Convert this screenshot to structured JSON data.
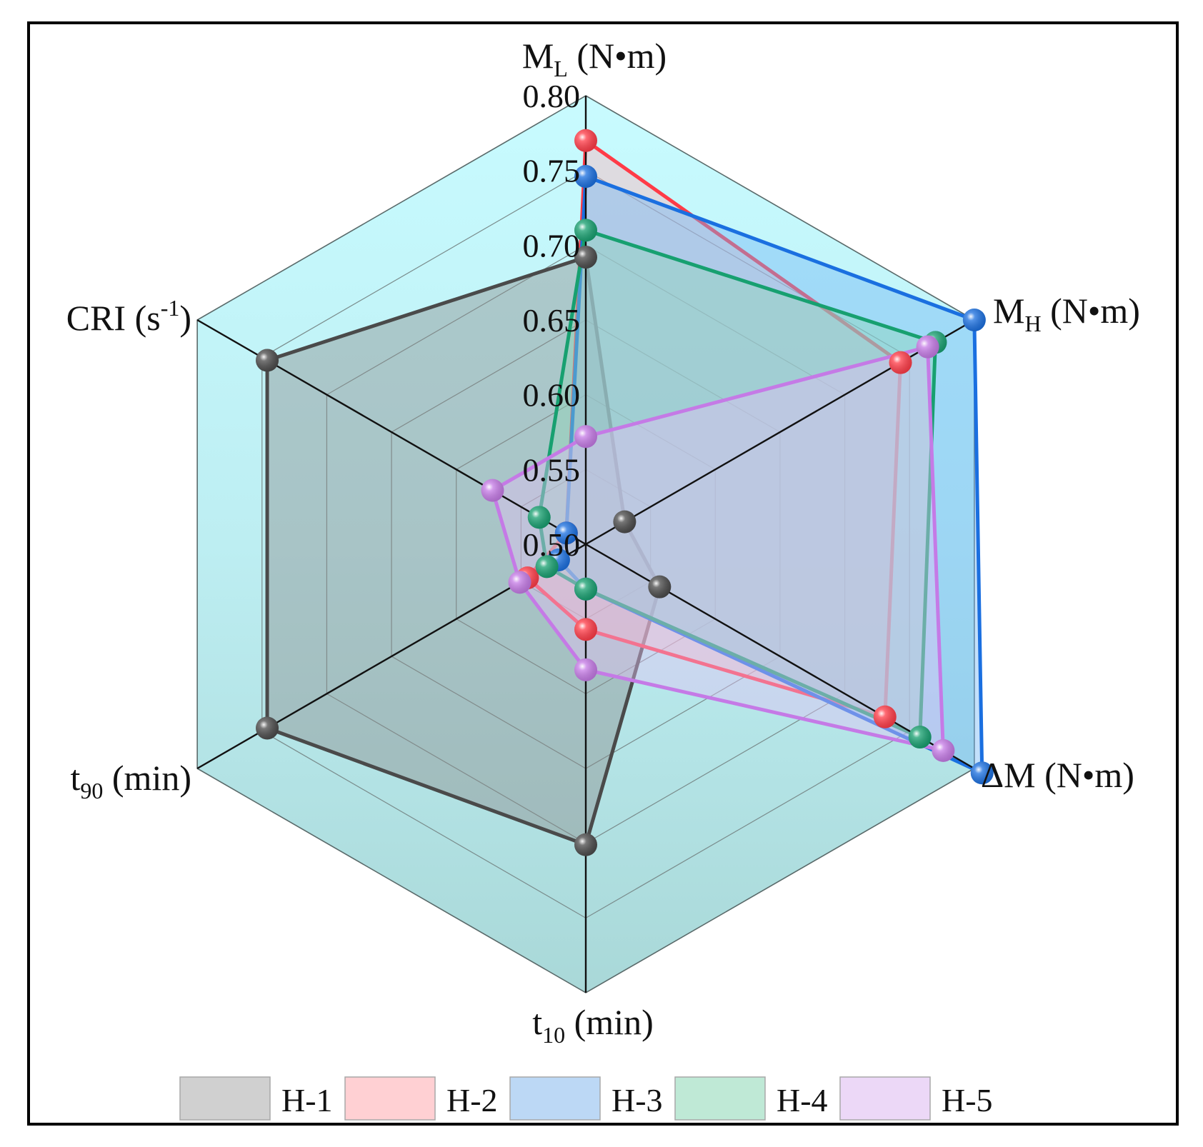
{
  "chart_data": {
    "type": "radar",
    "title": "",
    "axes": [
      {
        "label": "M",
        "sub": "L",
        "unit": " (N•m)"
      },
      {
        "label": "M",
        "sub": "H",
        "unit": " (N•m)"
      },
      {
        "label": "ΔM (N•m)",
        "sub": "",
        "unit": ""
      },
      {
        "label": "t",
        "sub": "10",
        "unit": " (min)"
      },
      {
        "label": "t",
        "sub": "90",
        "unit": " (min)"
      },
      {
        "label": "CRI (s",
        "sup": "-1",
        "unit": ")"
      }
    ],
    "radial_ticks": [
      "0.50",
      "0.55",
      "0.60",
      "0.65",
      "0.70",
      "0.75",
      "0.80"
    ],
    "radial_range": [
      0.5,
      0.8
    ],
    "grid_rings": 6,
    "legend_position": "bottom",
    "series": [
      {
        "name": "H-1",
        "color": "#4a4a4a",
        "fill": "#8a8a8a",
        "legend_fill": "#d0d0d0",
        "values_normalized": [
          0.64,
          0.1,
          0.19,
          0.67,
          0.82,
          0.82
        ]
      },
      {
        "name": "H-2",
        "color": "#ff3b47",
        "fill": "#ffb3b8",
        "legend_fill": "#ffd0d3",
        "values_normalized": [
          0.9,
          0.81,
          0.77,
          0.19,
          0.15,
          0.05
        ]
      },
      {
        "name": "H-3",
        "color": "#1a6fe0",
        "fill": "#6fb5f5",
        "legend_fill": "#bcd8f5",
        "values_normalized": [
          0.82,
          1.0,
          1.02,
          0.1,
          0.07,
          0.05
        ]
      },
      {
        "name": "H-4",
        "color": "#17a070",
        "fill": "#8fd7b8",
        "legend_fill": "#bfe9d6",
        "values_normalized": [
          0.7,
          0.9,
          0.86,
          0.1,
          0.1,
          0.12
        ]
      },
      {
        "name": "H-5",
        "color": "#c57ae6",
        "fill": "#e3c2f5",
        "legend_fill": "#ecd8f7",
        "values_normalized": [
          0.24,
          0.88,
          0.92,
          0.28,
          0.17,
          0.24
        ]
      }
    ]
  }
}
